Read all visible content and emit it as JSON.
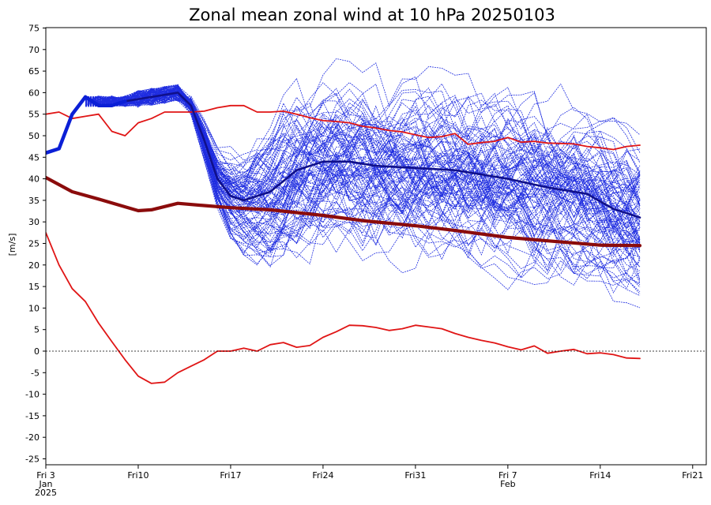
{
  "chart_data": {
    "type": "line",
    "title": "Zonal mean zonal wind at 10 hPa 20250103",
    "ylabel": "[m/s]",
    "xlabel": "",
    "ylim": [
      -27,
      75
    ],
    "y_ticks": [
      75,
      70,
      65,
      60,
      55,
      50,
      45,
      40,
      35,
      30,
      25,
      20,
      15,
      10,
      5,
      0,
      -5,
      -10,
      -15,
      -20,
      -25
    ],
    "x_range_days": [
      0,
      49
    ],
    "x_ticks": [
      {
        "day": 0,
        "lines": [
          "Fri 3",
          "Jan",
          "2025"
        ]
      },
      {
        "day": 7,
        "lines": [
          "Fri10"
        ]
      },
      {
        "day": 14,
        "lines": [
          "Fri17"
        ]
      },
      {
        "day": 21,
        "lines": [
          "Fri24"
        ]
      },
      {
        "day": 28,
        "lines": [
          "Fri31"
        ]
      },
      {
        "day": 35,
        "lines": [
          "Fri 7",
          "Feb"
        ]
      },
      {
        "day": 42,
        "lines": [
          "Fri14"
        ]
      },
      {
        "day": 49,
        "lines": [
          "Fri21"
        ]
      }
    ],
    "zero_line": 0,
    "colors": {
      "ensemble": "#1f2de0",
      "ensemble_mean": "#10108a",
      "analysis": "#0b1fd6",
      "climatology_mean": "#8b0c0c",
      "climatology_extremes": "#e01515"
    },
    "ensemble": {
      "members": 100,
      "start_day": 3,
      "end_day": 45,
      "initial_value": 47
    },
    "series": [
      {
        "role": "analysis",
        "x": [
          0,
          1,
          2,
          3,
          4,
          5,
          6
        ],
        "values": [
          46,
          47,
          55,
          59,
          57,
          57,
          58
        ]
      },
      {
        "role": "ensemble_mean",
        "x": [
          6,
          7,
          8,
          9,
          10,
          11,
          12,
          13,
          14,
          15,
          17,
          19,
          21,
          23,
          25,
          28,
          31,
          35,
          38,
          41,
          43,
          45
        ],
        "values": [
          58,
          58.5,
          59,
          59.5,
          60,
          57,
          49,
          40,
          36,
          35,
          37,
          42,
          44,
          44,
          43,
          42.5,
          42,
          40,
          38,
          36.5,
          33,
          31
        ]
      },
      {
        "role": "climatology_mean",
        "x": [
          0,
          2,
          4,
          6,
          7,
          8,
          10,
          12,
          14,
          17,
          21,
          24,
          28,
          31,
          35,
          38,
          42,
          45
        ],
        "values": [
          40.3,
          37,
          35.3,
          33.5,
          32.6,
          32.8,
          34.3,
          33.8,
          33.3,
          32.8,
          31.5,
          30.3,
          29.1,
          28,
          26.4,
          25.6,
          24.6,
          24.5
        ]
      },
      {
        "role": "climatology_max",
        "x": [
          0,
          1,
          2,
          3,
          4,
          5,
          6,
          7,
          8,
          9,
          10,
          11,
          12,
          13,
          14,
          15,
          16,
          17,
          18,
          19,
          20,
          21,
          22,
          23,
          24,
          25,
          26,
          27,
          28,
          29,
          30,
          31,
          32,
          33,
          34,
          35,
          36,
          37,
          38,
          39,
          40,
          41,
          42,
          43,
          44,
          45
        ],
        "values": [
          55,
          55.5,
          54,
          54.5,
          55,
          51,
          50,
          53,
          54,
          55.5,
          55.5,
          55.5,
          55.7,
          56.5,
          57,
          57,
          55.5,
          55.5,
          55.7,
          55,
          54.2,
          53.5,
          53.3,
          53,
          52.2,
          51.8,
          51.2,
          50.9,
          50.2,
          49.6,
          49.8,
          50.5,
          48,
          48.4,
          48.7,
          49.6,
          48.5,
          48.7,
          48.3,
          48.2,
          48.1,
          47.5,
          47.2,
          46.8,
          47.5,
          47.8
        ]
      },
      {
        "role": "climatology_min",
        "x": [
          0,
          1,
          2,
          3,
          4,
          5,
          6,
          7,
          8,
          9,
          10,
          11,
          12,
          13,
          14,
          15,
          16,
          17,
          18,
          19,
          20,
          21,
          22,
          23,
          24,
          25,
          26,
          27,
          28,
          29,
          30,
          31,
          32,
          33,
          34,
          35,
          36,
          37,
          38,
          39,
          40,
          41,
          42,
          43,
          44,
          45
        ],
        "values": [
          27.5,
          20,
          14.5,
          11.5,
          6.5,
          2.2,
          -2,
          -5.8,
          -7.5,
          -7.2,
          -5,
          -3.5,
          -2,
          0,
          0,
          0.7,
          0,
          1.5,
          2,
          0.9,
          1.3,
          3.2,
          4.5,
          6,
          5.9,
          5.5,
          4.8,
          5.2,
          6,
          5.6,
          5.2,
          4.1,
          3.2,
          2.5,
          1.9,
          1,
          0.3,
          1.2,
          -0.5,
          0,
          0.4,
          -0.6,
          -0.4,
          -0.8,
          -1.6,
          -1.7
        ]
      }
    ]
  }
}
